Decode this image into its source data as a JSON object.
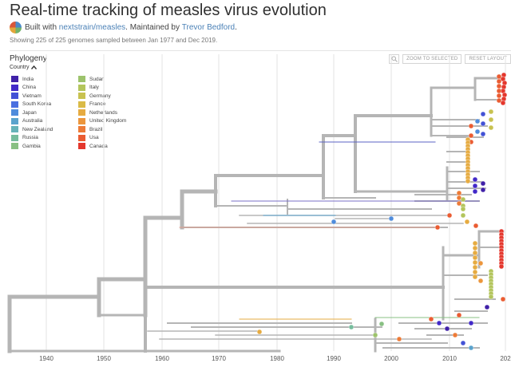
{
  "header": {
    "title": "Real-time tracking of measles virus evolution",
    "built_with_prefix": "Built with",
    "built_with_link": "nextstrain/measles",
    "maintained_prefix": ". Maintained by",
    "maintainer_link": "Trevor Bedford",
    "maintained_suffix": ".",
    "summary": "Showing 225 of 225 genomes sampled between Jan 1977 and Dec 2019."
  },
  "panel": {
    "title": "Phylogeny",
    "zoom_label": "ZOOM TO SELECTED",
    "reset_label": "RESET LAYOUT"
  },
  "legend": {
    "title": "Country",
    "col1": [
      {
        "label": "India",
        "color": "#4021a8"
      },
      {
        "label": "China",
        "color": "#4229c8"
      },
      {
        "label": "Vietnam",
        "color": "#4352d6"
      },
      {
        "label": "South Korea",
        "color": "#4a6fe0"
      },
      {
        "label": "Japan",
        "color": "#4f8cdc"
      },
      {
        "label": "Australia",
        "color": "#5aa3cd"
      },
      {
        "label": "New Zealand",
        "color": "#66b3b9"
      },
      {
        "label": "Russia",
        "color": "#76bd9d"
      },
      {
        "label": "Gambia",
        "color": "#88c083"
      }
    ],
    "col2": [
      {
        "label": "Sudan",
        "color": "#9dc36c"
      },
      {
        "label": "Italy",
        "color": "#b3c55c"
      },
      {
        "label": "Germany",
        "color": "#c8c250"
      },
      {
        "label": "France",
        "color": "#dabb47"
      },
      {
        "label": "Netherlands",
        "color": "#e6ab41"
      },
      {
        "label": "United Kingdom",
        "color": "#ec963c"
      },
      {
        "label": "Brazil",
        "color": "#ed7b37"
      },
      {
        "label": "Usa",
        "color": "#ea5c32"
      },
      {
        "label": "Canada",
        "color": "#e4372d"
      }
    ]
  },
  "axis": {
    "ticks": [
      "1940",
      "1950",
      "1960",
      "1970",
      "1980",
      "1990",
      "2000",
      "2010",
      "202"
    ]
  },
  "tips": [
    {
      "country": "Canada",
      "color": "#e4372d"
    },
    {
      "country": "Usa",
      "color": "#ea5c32"
    },
    {
      "country": "Brazil",
      "color": "#ed7b37"
    },
    {
      "country": "United Kingdom",
      "color": "#ec963c"
    },
    {
      "country": "Netherlands",
      "color": "#e6ab41"
    },
    {
      "country": "Germany",
      "color": "#c8c250"
    },
    {
      "country": "Italy",
      "color": "#b3c55c"
    },
    {
      "country": "China",
      "color": "#4229c8"
    },
    {
      "country": "India",
      "color": "#4021a8"
    },
    {
      "country": "Vietnam",
      "color": "#4352d6"
    },
    {
      "country": "Japan",
      "color": "#4f8cdc"
    },
    {
      "country": "Australia",
      "color": "#5aa3cd"
    },
    {
      "country": "Gambia",
      "color": "#88c083"
    },
    {
      "country": "Sudan",
      "color": "#9dc36c"
    },
    {
      "country": "Russia",
      "color": "#76bd9d"
    }
  ]
}
